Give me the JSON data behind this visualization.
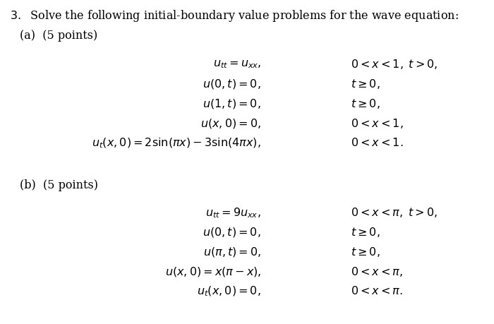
{
  "background_color": "#ffffff",
  "part_a_left": [
    "u_{tt} = u_{xx},",
    "u(0,t) = 0,",
    "u(1,t) = 0,",
    "u(x,0) = 0,",
    "u_t(x,0) = 2\\sin(\\pi x) - 3\\sin(4\\pi x),"
  ],
  "part_a_right": [
    "0 < x < 1,\\; t > 0,",
    "t \\geq 0,",
    "t \\geq 0,",
    "0 < x < 1,",
    "0 < x < 1."
  ],
  "part_b_left": [
    "u_{tt} = 9u_{xx},",
    "u(0,t) = 0,",
    "u(\\pi,t) = 0,",
    "u(x,0) = x(\\pi - x),",
    "u_t(x,0) = 0,"
  ],
  "part_b_right": [
    "0 < x < \\pi,\\; t > 0,",
    "t \\geq 0,",
    "t \\geq 0,",
    "0 < x < \\pi,",
    "0 < x < \\pi."
  ],
  "font_size": 11.5
}
